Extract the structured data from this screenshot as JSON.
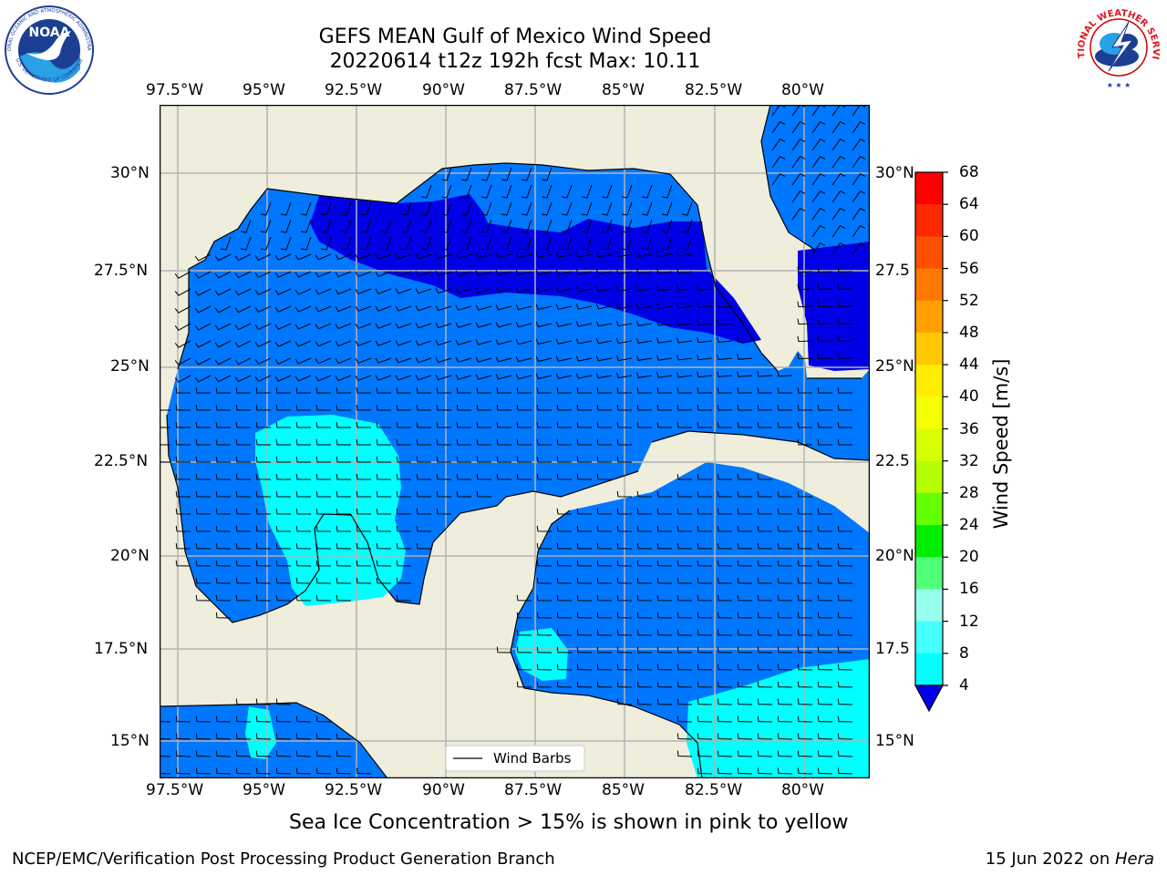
{
  "header": {
    "title_line1": "GEFS MEAN Gulf of Mexico Wind Speed",
    "title_line2": "20220614 t12z 192h fcst   Max: 10.11"
  },
  "logos": {
    "left_name": "NOAA",
    "left_ring_text": "NATIONAL OCEANIC AND ATMOSPHERIC ADMINISTRATION",
    "left_ring_bottom": "U.S. DEPARTMENT OF COMMERCE",
    "right_ring_text": "NATIONAL WEATHER SERVICE"
  },
  "map": {
    "lon_labels": [
      "97.5°W",
      "95°W",
      "92.5°W",
      "90°W",
      "87.5°W",
      "85°W",
      "82.5°W",
      "80°W"
    ],
    "lat_labels_left": [
      "30°N",
      "27.5°N",
      "25°N",
      "22.5°N",
      "20°N",
      "17.5°N",
      "15°N"
    ],
    "lat_labels_right": [
      "30°N",
      "27.5",
      "25°N",
      "22.5",
      "20°N",
      "17.5",
      "15°N"
    ],
    "legend_label": "Wind Barbs",
    "colors": {
      "land": "#efeddc",
      "ws_4_8": "#0077ff",
      "ws_lt_4": "#0000e6",
      "ws_8_12": "#00ffff"
    }
  },
  "colorbar": {
    "label": "Wind Speed [m/s]",
    "ticks": [
      "68",
      "64",
      "60",
      "56",
      "52",
      "48",
      "44",
      "40",
      "36",
      "32",
      "28",
      "24",
      "20",
      "16",
      "12",
      "8",
      "4"
    ],
    "colors": [
      "#ff0000",
      "#ff2800",
      "#ff5000",
      "#ff7800",
      "#ffa000",
      "#ffc800",
      "#ffee00",
      "#f5ff00",
      "#d8ff00",
      "#b4ff00",
      "#64ff00",
      "#00ee00",
      "#50ff78",
      "#96ffee",
      "#46ffff",
      "#00ffff",
      "#0077ff"
    ],
    "extend_color": "#0000e6"
  },
  "caption": "Sea Ice Concentration > 15% is shown in pink to yellow",
  "footer": {
    "left": "NCEP/EMC/Verification Post Processing Product Generation Branch",
    "right_prefix": "15 Jun 2022 on ",
    "right_machine": "Hera"
  }
}
